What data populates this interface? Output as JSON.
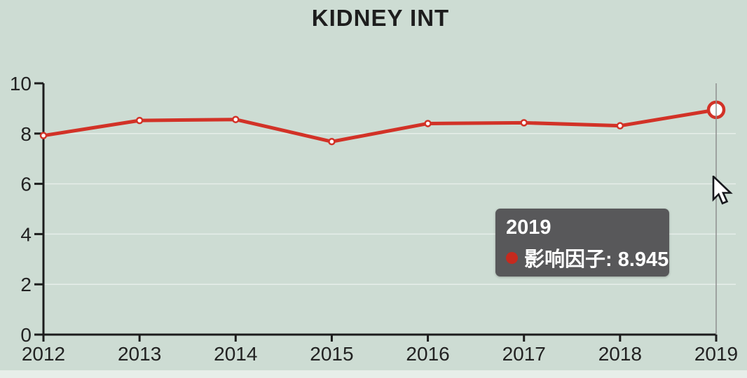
{
  "page": {
    "background_color": "#cddcd3",
    "bottom_strip_color": "#e7eee9"
  },
  "header": {
    "title": "KIDNEY INT"
  },
  "chart_data": {
    "type": "line",
    "title": "KIDNEY INT",
    "categories": [
      "2012",
      "2013",
      "2014",
      "2015",
      "2016",
      "2017",
      "2018",
      "2019"
    ],
    "series": [
      {
        "name": "影响因子",
        "color": "#d23227",
        "values": [
          7.92,
          8.52,
          8.56,
          7.68,
          8.4,
          8.43,
          8.31,
          8.945
        ]
      }
    ],
    "xlabel": "",
    "ylabel": "",
    "ylim": [
      0,
      10
    ],
    "y_ticks": [
      "0",
      "2",
      "4",
      "6",
      "8",
      "10"
    ],
    "grid": "faint horizontal gridlines at even values",
    "legend": "none",
    "axis_color": "#1c1c1c",
    "tick_label_color": "#222222",
    "marker_fill": "#ffffff",
    "highlighted_point": {
      "category": "2019",
      "value": 8.945,
      "crosshair": true,
      "crosshair_color": "#8f8f8f"
    }
  },
  "tooltip": {
    "title": "2019",
    "series_label": "影响因子",
    "value": "8.945",
    "text": "影响因子: 8.945",
    "marker_color": "#c62a1e",
    "background": "#58585a"
  },
  "cursor": {
    "type": "arrow-pointer"
  }
}
